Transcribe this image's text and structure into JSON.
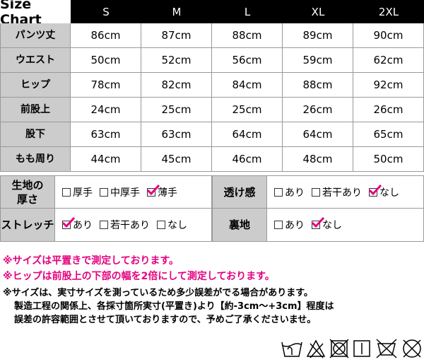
{
  "size_chart": {
    "title": "Size Chart",
    "sizes": [
      "S",
      "M",
      "L",
      "XL",
      "2XL"
    ],
    "rows": [
      {
        "label": "パンツ丈",
        "values": [
          "86cm",
          "87cm",
          "88cm",
          "89cm",
          "90cm"
        ]
      },
      {
        "label": "ウエスト",
        "values": [
          "50cm",
          "52cm",
          "56cm",
          "59cm",
          "62cm"
        ]
      },
      {
        "label": "ヒップ",
        "values": [
          "78cm",
          "82cm",
          "84cm",
          "88cm",
          "92cm"
        ]
      },
      {
        "label": "前股上",
        "values": [
          "24cm",
          "25cm",
          "25cm",
          "26cm",
          "26cm"
        ]
      },
      {
        "label": "股下",
        "values": [
          "63cm",
          "63cm",
          "64cm",
          "64cm",
          "65cm"
        ]
      },
      {
        "label": "もも周り",
        "values": [
          "44cm",
          "45cm",
          "46cm",
          "48cm",
          "50cm"
        ]
      }
    ]
  },
  "fabric": {
    "rows": [
      [
        {
          "label": "生地の\n厚さ",
          "options": [
            {
              "text": "厚手",
              "checked": false
            },
            {
              "text": "中厚手",
              "checked": false
            },
            {
              "text": "薄手",
              "checked": true
            }
          ]
        },
        {
          "label": "透け感",
          "options": [
            {
              "text": "あり",
              "checked": false
            },
            {
              "text": "若干あり",
              "checked": false
            },
            {
              "text": "なし",
              "checked": true
            }
          ]
        }
      ],
      [
        {
          "label": "ストレッチ",
          "options": [
            {
              "text": "あり",
              "checked": true
            },
            {
              "text": "若干あり",
              "checked": false
            },
            {
              "text": "なし",
              "checked": false
            }
          ]
        },
        {
          "label": "裏地",
          "options": [
            {
              "text": "あり",
              "checked": false
            },
            {
              "text": "なし",
              "checked": true
            }
          ]
        }
      ]
    ]
  },
  "notes": {
    "pink": [
      "※サイズは平置きで測定しております。",
      "※ヒップは前股上の下部の幅を2倍にして測定しております。"
    ],
    "black": [
      "※サイズは、実寸サイズを測っているため多少誤差がでる場合があります。",
      "製造工程の関係上、各採寸箇所実寸(平置き)より【約-3cm～+3cm】程度は",
      "誤差の許容範囲とさせて頂いておりますので、予めご了承くださいませ。"
    ]
  }
}
